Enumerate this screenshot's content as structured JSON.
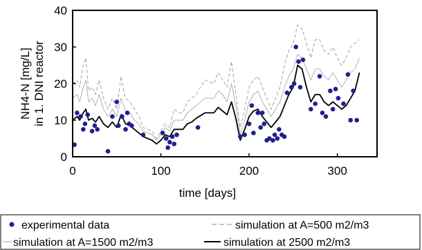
{
  "chart_data": {
    "type": "line",
    "title": "",
    "xlabel": "time [days]",
    "ylabel_lines": [
      "NH4-N [mg/L]",
      "in 1. DNI reactor"
    ],
    "xlim": [
      0,
      345
    ],
    "ylim": [
      0,
      40
    ],
    "x_ticks": [
      0,
      100,
      200,
      300
    ],
    "y_ticks": [
      0,
      10,
      20,
      30,
      40
    ],
    "grid": false,
    "legend_position": "bottom",
    "series": [
      {
        "name": "experimental data",
        "style": "markers",
        "color": "#1f1f8f",
        "points": [
          [
            2,
            3.3
          ],
          [
            5,
            12
          ],
          [
            9,
            11
          ],
          [
            12,
            7.5
          ],
          [
            14,
            9
          ],
          [
            17,
            11.5
          ],
          [
            22,
            7
          ],
          [
            25,
            8.5
          ],
          [
            28,
            7.5
          ],
          [
            40,
            1.5
          ],
          [
            45,
            11
          ],
          [
            50,
            15
          ],
          [
            52,
            8.5
          ],
          [
            56,
            11
          ],
          [
            60,
            7.5
          ],
          [
            62,
            12
          ],
          [
            64,
            9
          ],
          [
            67,
            8.5
          ],
          [
            80,
            6
          ],
          [
            102,
            6.5
          ],
          [
            106,
            5
          ],
          [
            108,
            2.5
          ],
          [
            110,
            4
          ],
          [
            113,
            5.5
          ],
          [
            115,
            3.5
          ],
          [
            118,
            6
          ],
          [
            142,
            8
          ],
          [
            190,
            5.5
          ],
          [
            195,
            6
          ],
          [
            200,
            9
          ],
          [
            203,
            14
          ],
          [
            205,
            6.5
          ],
          [
            210,
            12
          ],
          [
            213,
            8
          ],
          [
            215,
            12
          ],
          [
            217,
            9
          ],
          [
            220,
            4.5
          ],
          [
            223,
            5
          ],
          [
            227,
            4.5
          ],
          [
            229,
            6
          ],
          [
            232,
            5
          ],
          [
            234,
            7.5
          ],
          [
            237,
            6
          ],
          [
            240,
            5.5
          ],
          [
            243,
            17.5
          ],
          [
            248,
            19
          ],
          [
            251,
            20
          ],
          [
            253,
            30
          ],
          [
            256,
            26
          ],
          [
            258,
            19
          ],
          [
            261,
            26.5
          ],
          [
            270,
            13
          ],
          [
            275,
            14.5
          ],
          [
            280,
            22
          ],
          [
            283,
            12
          ],
          [
            287,
            11
          ],
          [
            292,
            18
          ],
          [
            295,
            13
          ],
          [
            298,
            18.5
          ],
          [
            301,
            16
          ],
          [
            307,
            14.5
          ],
          [
            312,
            22.5
          ],
          [
            315,
            10
          ],
          [
            318,
            18
          ],
          [
            322,
            10
          ]
        ]
      },
      {
        "name": "simulation at A=500 m2/m3",
        "style": "dashed",
        "color": "#a0a0a0",
        "points": [
          [
            0,
            20
          ],
          [
            5,
            21
          ],
          [
            8,
            19
          ],
          [
            12,
            25
          ],
          [
            15,
            27
          ],
          [
            18,
            18
          ],
          [
            22,
            19
          ],
          [
            26,
            17
          ],
          [
            30,
            21
          ],
          [
            35,
            16
          ],
          [
            40,
            13
          ],
          [
            45,
            16
          ],
          [
            50,
            13
          ],
          [
            55,
            22
          ],
          [
            58,
            18
          ],
          [
            60,
            16
          ],
          [
            65,
            15
          ],
          [
            70,
            13
          ],
          [
            75,
            11
          ],
          [
            80,
            8
          ],
          [
            90,
            7
          ],
          [
            95,
            5
          ],
          [
            100,
            7
          ],
          [
            105,
            9
          ],
          [
            110,
            8
          ],
          [
            115,
            13
          ],
          [
            120,
            12
          ],
          [
            125,
            12
          ],
          [
            130,
            15
          ],
          [
            135,
            16
          ],
          [
            140,
            17
          ],
          [
            150,
            21
          ],
          [
            160,
            20
          ],
          [
            165,
            23
          ],
          [
            170,
            21
          ],
          [
            175,
            19
          ],
          [
            180,
            26
          ],
          [
            185,
            17
          ],
          [
            190,
            8
          ],
          [
            195,
            13
          ],
          [
            200,
            19
          ],
          [
            205,
            21
          ],
          [
            210,
            22
          ],
          [
            215,
            19
          ],
          [
            220,
            16
          ],
          [
            225,
            13
          ],
          [
            230,
            16
          ],
          [
            235,
            19
          ],
          [
            240,
            25
          ],
          [
            245,
            29
          ],
          [
            250,
            31
          ],
          [
            255,
            36
          ],
          [
            260,
            35
          ],
          [
            265,
            31
          ],
          [
            270,
            27
          ],
          [
            275,
            32
          ],
          [
            280,
            32
          ],
          [
            285,
            29
          ],
          [
            290,
            28
          ],
          [
            295,
            30
          ],
          [
            300,
            27
          ],
          [
            305,
            25
          ],
          [
            310,
            27
          ],
          [
            315,
            30
          ],
          [
            320,
            31
          ],
          [
            325,
            32
          ]
        ]
      },
      {
        "name": "simulation at A=1500 m2/m3",
        "style": "thin",
        "color": "#a8a8a8",
        "points": [
          [
            0,
            16
          ],
          [
            5,
            17
          ],
          [
            8,
            15
          ],
          [
            12,
            19
          ],
          [
            15,
            21
          ],
          [
            18,
            15
          ],
          [
            22,
            16
          ],
          [
            26,
            14
          ],
          [
            30,
            17
          ],
          [
            35,
            13
          ],
          [
            40,
            11
          ],
          [
            45,
            13
          ],
          [
            50,
            11
          ],
          [
            55,
            16
          ],
          [
            58,
            14
          ],
          [
            60,
            12
          ],
          [
            65,
            12
          ],
          [
            70,
            10
          ],
          [
            75,
            9
          ],
          [
            80,
            7
          ],
          [
            90,
            6
          ],
          [
            95,
            4.5
          ],
          [
            100,
            6
          ],
          [
            105,
            8
          ],
          [
            110,
            7
          ],
          [
            115,
            10
          ],
          [
            120,
            10
          ],
          [
            125,
            10
          ],
          [
            130,
            12
          ],
          [
            135,
            13
          ],
          [
            140,
            14
          ],
          [
            150,
            16
          ],
          [
            160,
            16
          ],
          [
            165,
            18
          ],
          [
            170,
            17
          ],
          [
            175,
            15
          ],
          [
            180,
            20
          ],
          [
            185,
            14
          ],
          [
            190,
            6
          ],
          [
            195,
            10
          ],
          [
            200,
            15
          ],
          [
            205,
            17
          ],
          [
            210,
            18
          ],
          [
            215,
            15
          ],
          [
            220,
            13
          ],
          [
            225,
            11
          ],
          [
            230,
            13
          ],
          [
            235,
            15
          ],
          [
            240,
            19
          ],
          [
            245,
            22
          ],
          [
            250,
            24
          ],
          [
            255,
            28
          ],
          [
            260,
            27
          ],
          [
            265,
            24
          ],
          [
            270,
            21
          ],
          [
            275,
            24
          ],
          [
            280,
            24
          ],
          [
            285,
            22
          ],
          [
            290,
            21
          ],
          [
            295,
            23
          ],
          [
            300,
            21
          ],
          [
            305,
            19
          ],
          [
            310,
            21
          ],
          [
            315,
            23
          ],
          [
            320,
            24
          ],
          [
            325,
            27
          ]
        ]
      },
      {
        "name": "simulation at 2500 m2/m3",
        "style": "thick",
        "color": "#000000",
        "points": [
          [
            0,
            10
          ],
          [
            5,
            11
          ],
          [
            8,
            10
          ],
          [
            12,
            12
          ],
          [
            15,
            13
          ],
          [
            18,
            10
          ],
          [
            22,
            10.5
          ],
          [
            26,
            9.5
          ],
          [
            30,
            11
          ],
          [
            35,
            9
          ],
          [
            40,
            8
          ],
          [
            45,
            9.5
          ],
          [
            50,
            8
          ],
          [
            55,
            11.5
          ],
          [
            58,
            10
          ],
          [
            60,
            9
          ],
          [
            65,
            8.5
          ],
          [
            70,
            7.5
          ],
          [
            75,
            6.5
          ],
          [
            80,
            5.5
          ],
          [
            90,
            4.5
          ],
          [
            95,
            3.5
          ],
          [
            100,
            4.5
          ],
          [
            105,
            6
          ],
          [
            110,
            5.5
          ],
          [
            115,
            7.5
          ],
          [
            120,
            7.5
          ],
          [
            125,
            7.5
          ],
          [
            130,
            9
          ],
          [
            135,
            9.5
          ],
          [
            140,
            10.5
          ],
          [
            150,
            12
          ],
          [
            160,
            12
          ],
          [
            165,
            13.5
          ],
          [
            170,
            12.5
          ],
          [
            175,
            11.5
          ],
          [
            180,
            15
          ],
          [
            185,
            10.5
          ],
          [
            190,
            4.5
          ],
          [
            195,
            7.5
          ],
          [
            200,
            11
          ],
          [
            205,
            12.5
          ],
          [
            210,
            13
          ],
          [
            215,
            11
          ],
          [
            220,
            9.5
          ],
          [
            225,
            8
          ],
          [
            230,
            9.5
          ],
          [
            235,
            11
          ],
          [
            240,
            14
          ],
          [
            245,
            17
          ],
          [
            250,
            19
          ],
          [
            255,
            25
          ],
          [
            260,
            24
          ],
          [
            265,
            19
          ],
          [
            270,
            15
          ],
          [
            275,
            17
          ],
          [
            280,
            17
          ],
          [
            285,
            15
          ],
          [
            290,
            14
          ],
          [
            295,
            15
          ],
          [
            300,
            14
          ],
          [
            305,
            13
          ],
          [
            310,
            14
          ],
          [
            315,
            16
          ],
          [
            320,
            18
          ],
          [
            325,
            23
          ]
        ]
      }
    ]
  }
}
